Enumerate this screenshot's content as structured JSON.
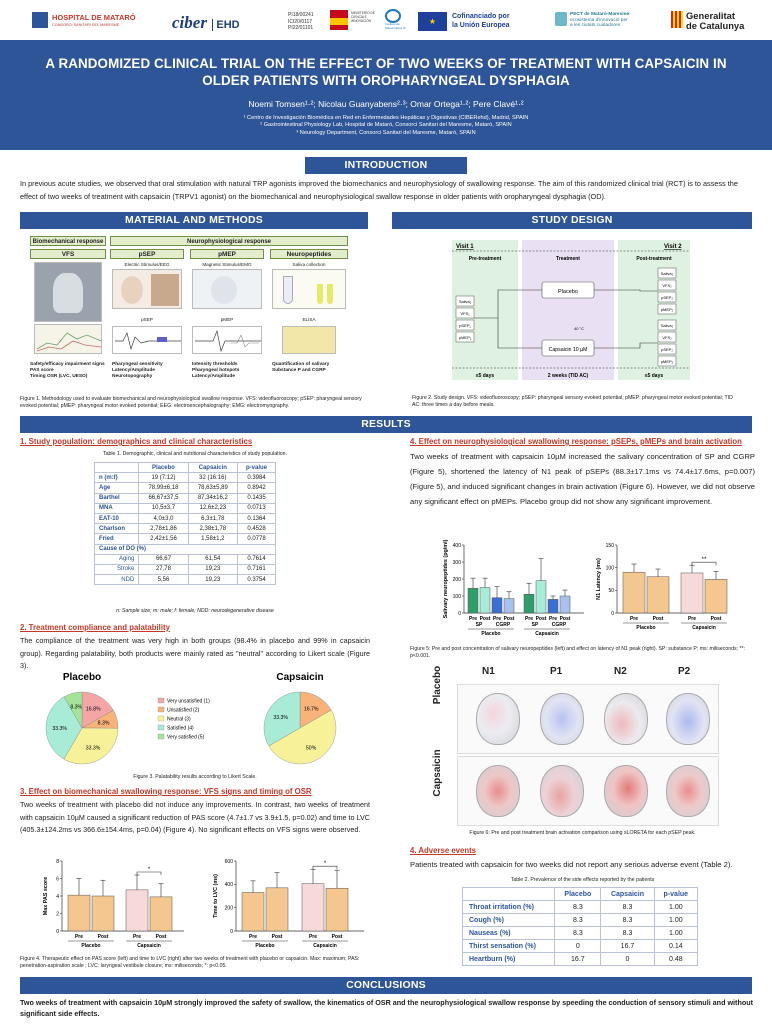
{
  "logos": {
    "hospital": "HOSPITAL DE MATARÓ",
    "hospital_sub": "CONSORCI SANITARI DEL MARESME",
    "ciber": "ciber",
    "ciber_ehd": "EHD",
    "grants": [
      "PI18/00241",
      "ICI20/0117",
      "PI22/01101"
    ],
    "ministerio": "MINISTERIO DE CIENCIA E INNOVACIÓN",
    "isciii": "Instituto de Salud Carlos III",
    "eu_1": "Cofinanciado por",
    "eu_2": "la Unión Europea",
    "pect_1": "PECT de Mataró-Maresme:",
    "pect_2": "ecosistema d'innovació per",
    "pect_3": "a les ciutats cuidadores",
    "gencat_1": "Generalitat",
    "gencat_2": "de Catalunya"
  },
  "title": "A RANDOMIZED CLINICAL TRIAL ON THE EFFECT OF TWO WEEKS OF TREATMENT WITH CAPSAICIN IN OLDER PATIENTS WITH OROPHARYNGEAL DYSPHAGIA",
  "authors": "Noemi Tomsen¹·²; Nicolau Guanyabens²·³; Omar Ortega¹·²; Pere Clavé¹·²",
  "affiliations": [
    "¹ Centro de Investigación Biomédica en Red en Enfermedades Hepáticas y Digestivas (CIBERehd), Madrid, SPAIN",
    "² Gastrointestinal Physiology Lab, Hospital de Mataró, Consorci Sanitari del Maresme, Mataró, SPAIN",
    "³ Neurology Department, Consorci Sanitari del Maresme, Mataró, SPAIN"
  ],
  "intro": {
    "header": "INTRODUCTION",
    "text": "In previous acute studies, we observed that oral stimulation with natural TRP agonists improved the biomechanics and neurophysiology of swallowing response. The aim of this randomized clinical trial (RCT) is to assess the effect of two weeks of treatment with capsaicin (TRPV1 agonist) on the biomechanical and neurophysiological swallow response in older patients with oropharyngeal dysphagia (OD)."
  },
  "methods": {
    "header": "MATERIAL AND METHODS",
    "biomech": "Biomechanical response",
    "neuro": "Neurophysiological response",
    "cols": [
      "VFS",
      "pSEP",
      "pMEP",
      "Neuropeptides"
    ],
    "subs": [
      "Electric Stimulus/EEG",
      "Magnetic Stimulus/EMG",
      "Saliva collection"
    ],
    "img_labels": [
      "pSEP",
      "pMEP",
      "ELISA"
    ],
    "bullets_vfs": [
      "Safety/efficacy impairment signs",
      "PAS score",
      "Timing OSR (LVC, UESO)"
    ],
    "bullets_psep": [
      "Pharyngeal sensitivity",
      "Latency/Amplitude",
      "Neurotopography"
    ],
    "bullets_pmep": [
      "Intensity thresholds",
      "Pharyngeal hotspots",
      "Latency/Amplitude"
    ],
    "bullets_neuro": [
      "Quantification of salivary Substance P and CGRP"
    ],
    "caption": "Figure 1. Methodology used to evaluate biomechanical and neurophysiological swallow response. VFS: videofluoroscopy; pSEP: pharyngeal sensory evoked potential; pMEP: pharyngeal motor evoked potential; EEG: electroencephalography; EMG: electromyography."
  },
  "design": {
    "header": "STUDY DESIGN",
    "visit1": "Visit 1",
    "visit2": "Visit 2",
    "pre": "Pre-treatment",
    "treat": "Treatment",
    "post": "Post-treatment",
    "left_boxes": [
      "Saliva₁",
      "VFS₁",
      "pSEP₁",
      "pMEP₁"
    ],
    "right_boxes_top": [
      "Saliva₂",
      "VFS₂",
      "pSEP₂",
      "pMEP₂"
    ],
    "right_boxes_bot": [
      "Saliva₂",
      "VFS₂",
      "pSEP₂",
      "pMEP₂"
    ],
    "placebo": "Placebo",
    "capsaicin": "Capsaicin 10 µM",
    "temp": "40 °C",
    "d1": "≤5 days",
    "d2": "2 weeks (TID AC)",
    "d3": "≤5 days",
    "caption": "Figure 2. Study design. VFS: videofluoroscopy; pSEP: pharyngeal sensory evoked potential; pMEP: pharyngeal motor evoked potential; TID AC: three times a day before meals."
  },
  "results": {
    "header": "RESULTS",
    "s1": "1. Study population: demographics and clinical characteristics",
    "table1_caption": "Table 1. Demographic, clinical and nutritional characteristics of study population.",
    "table1_head": [
      "",
      "Placebo",
      "Capsaicin",
      "p-value"
    ],
    "table1_rows": [
      [
        "n (m:f)",
        "19 (7:12)",
        "32 (16:16)",
        "0.3984"
      ],
      [
        "Age",
        "78,99±6,18",
        "78,63±5,89",
        "0.8942"
      ],
      [
        "Barthel",
        "66,67±37,5",
        "87,34±16,2",
        "0.1435"
      ],
      [
        "MNA",
        "10,5±3,7",
        "12,6±2,23",
        "0.0713"
      ],
      [
        "EAT-10",
        "4,0±3,0",
        "6,3±1,78",
        "0.1364"
      ],
      [
        "Charlson",
        "2,78±1,86",
        "2,38±1,78",
        "0.4528"
      ],
      [
        "Fried",
        "2,42±1,56",
        "1,58±1,2",
        "0.0778"
      ]
    ],
    "table1_cause": "Cause of DO (%)",
    "table1_cause_rows": [
      [
        "Aging",
        "66,67",
        "61,54",
        "0.7614"
      ],
      [
        "Stroke",
        "27,78",
        "19,23",
        "0.7161"
      ],
      [
        "NDD",
        "5,56",
        "19,23",
        "0.3754"
      ]
    ],
    "table1_note": "n: Sample size; m: male; f: female; NDD: neurodegenerative disease",
    "s2": "2. Treatment compliance and palatability",
    "s2_text": "The compliance of the treatment was very high in both groups (98.4% in placebo and 99% in capsaicin group). Regarding palatability, both products were mainly rated as \"neutral\" according to Likert scale (Figure 3).",
    "pie_caption": "Figure 3. Palatability results according to Likert Scale.",
    "s3": "3. Effect on biomechanical swallowing response: VFS signs and timing of OSR",
    "s3_text": "Two weeks of treatment with placebo did not induce any improvements. In contrast, two weeks of treatment with capsaicin 10µM caused a significant reduction of PAS score (4.7±1.7 vs 3.9±1.5, p=0.02) and time to LVC (405.3±124.2ms vs 366.6±154.4ms, p=0.04) (Figure 4). No significant effects on VFS signs were observed.",
    "fig4_caption": "Figure 4. Therapeutic effect on PAS score (left) and time to LVC (right) after two weeks of treatment with placebo or capsaicin. Max: maximum; PAS: penetration-aspiration scale ; LVC: laryngeal vestibule closure; ms: miliseconds; *: p<0.05.",
    "s4": "4. Effect on neurophysiological swallowing response: pSEPs, pMEPs and brain activation",
    "s4_text": "Two weeks of treatment with capsaicin 10µM increased the salivary concentration of SP and CGRP (Figure 5), shortened the latency of N1 peak of pSEPs (88.3±17.1ms vs 74.4±17.6ms, p=0.007) (Figure 5), and induced significant changes in brain activation (Figure 6). However, we did not observe any significant effect on pMEPs. Placebo group did not show any significant improvement.",
    "fig5_caption": "Figure 5: Pre and post concentration of salivary neuropeptides (left) and effect on latency of N1 peak (right). SP: substance P; ms: miliseconds; **: p<0.001.",
    "brain_cols": [
      "N1",
      "P1",
      "N2",
      "P2"
    ],
    "brain_rows": [
      "Placebo",
      "Capsaicin"
    ],
    "fig6_caption": "Figure 6: Pre and post treatment brain activation comparison using sLORETA for each pSEP peak.",
    "s5": "4. Adverse events",
    "s5_text": "Patients treated with capsaicin for two weeks did not report any serious adverse event (Table 2).",
    "table2_caption": "Table 2. Prevalence of the side effects reported by the patients",
    "table2_head": [
      "",
      "Placebo",
      "Capsaicin",
      "p-value"
    ],
    "table2_rows": [
      [
        "Throat irritation (%)",
        "8.3",
        "8.3",
        "1.00"
      ],
      [
        "Cough (%)",
        "8.3",
        "8.3",
        "1.00"
      ],
      [
        "Nauseas (%)",
        "8.3",
        "8.3",
        "1.00"
      ],
      [
        "Thirst sensation (%)",
        "0",
        "16.7",
        "0.14"
      ],
      [
        "Heartburn (%)",
        "16.7",
        "0",
        "0.48"
      ]
    ]
  },
  "conclusions": {
    "header": "CONCLUSIONS",
    "text": "Two weeks of treatment with capsaicin 10µM strongly improved the safety of swallow, the kinematics of OSR and the neurophysiological swallow response by speeding the conduction of sensory stimuli and without significant side effects."
  },
  "chart_data": [
    {
      "type": "pie",
      "title": "Placebo",
      "slices": [
        {
          "label": "Very unsatisfied (1)",
          "value": 16.8,
          "color": "#f4a6a6"
        },
        {
          "label": "Unsatisfied (2)",
          "value": 8.3,
          "color": "#f7b37a"
        },
        {
          "label": "Neutral (3)",
          "value": 33.3,
          "color": "#f7f29a"
        },
        {
          "label": "Satisfied (4)",
          "value": 33.3,
          "color": "#a8ecd7"
        },
        {
          "label": "Very satisfied (5)",
          "value": 8.3,
          "color": "#a6e39a"
        }
      ],
      "slice_labels": [
        "16.8%",
        "8.3%",
        "33.3%",
        "33.3%",
        "8.3%"
      ]
    },
    {
      "type": "pie",
      "title": "Capsaicin",
      "slices": [
        {
          "label": "Unsatisfied (2)",
          "value": 16.7,
          "color": "#f7b37a"
        },
        {
          "label": "Neutral (3)",
          "value": 50,
          "color": "#f7f29a"
        },
        {
          "label": "Satisfied (4)",
          "value": 33.3,
          "color": "#a8ecd7"
        }
      ],
      "slice_labels": [
        "16.7%",
        "50%",
        "33.3%"
      ]
    },
    {
      "type": "bar",
      "ylabel": "Max PAS score",
      "ylim": [
        0,
        8
      ],
      "yticks": [
        0,
        2,
        4,
        6,
        8
      ],
      "bars": [
        {
          "label": "Pre",
          "group": "Placebo",
          "value": 4.1,
          "err": 1.9,
          "color": "#f3c78f"
        },
        {
          "label": "Post",
          "group": "Placebo",
          "value": 4.0,
          "err": 1.8,
          "color": "#f3c78f"
        },
        {
          "label": "Pre",
          "group": "Capsaicin",
          "value": 4.7,
          "err": 1.7,
          "color": "#f8d9d9"
        },
        {
          "label": "Post",
          "group": "Capsaicin",
          "value": 3.9,
          "err": 1.5,
          "color": "#f3c78f"
        }
      ],
      "groups": [
        "Placebo",
        "Capsaicin"
      ],
      "sig": "*"
    },
    {
      "type": "bar",
      "ylabel": "Time to LVC (ms)",
      "ylim": [
        0,
        600
      ],
      "yticks": [
        0,
        200,
        400,
        600
      ],
      "bars": [
        {
          "label": "Pre",
          "group": "Placebo",
          "value": 330,
          "err": 100,
          "color": "#f3c78f"
        },
        {
          "label": "Post",
          "group": "Placebo",
          "value": 370,
          "err": 130,
          "color": "#f3c78f"
        },
        {
          "label": "Pre",
          "group": "Capsaicin",
          "value": 405.3,
          "err": 124.2,
          "color": "#f8d9d9"
        },
        {
          "label": "Post",
          "group": "Capsaicin",
          "value": 366.6,
          "err": 154.4,
          "color": "#f3c78f"
        }
      ],
      "groups": [
        "Placebo",
        "Capsaicin"
      ],
      "sig": "*"
    },
    {
      "type": "bar",
      "ylabel": "Salivary neuropeptides (pg/ml)",
      "ylim": [
        0,
        400
      ],
      "yticks": [
        0,
        100,
        200,
        300,
        400
      ],
      "bars": [
        {
          "label": "Pre",
          "sub": "SP",
          "group": "Placebo",
          "value": 145,
          "err": 60,
          "color": "#2e9e6b"
        },
        {
          "label": "Post",
          "sub": "SP",
          "group": "Placebo",
          "value": 150,
          "err": 55,
          "color": "#a8ecd7"
        },
        {
          "label": "Pre",
          "sub": "CGRP",
          "group": "Placebo",
          "value": 90,
          "err": 65,
          "color": "#3b6fd1"
        },
        {
          "label": "Post",
          "sub": "CGRP",
          "group": "Placebo",
          "value": 85,
          "err": 40,
          "color": "#a9c0ef"
        },
        {
          "label": "Pre",
          "sub": "SP",
          "group": "Capsaicin",
          "value": 110,
          "err": 65,
          "color": "#2e9e6b"
        },
        {
          "label": "Post",
          "sub": "SP",
          "group": "Capsaicin",
          "value": 190,
          "err": 130,
          "color": "#a8ecd7"
        },
        {
          "label": "Pre",
          "sub": "CGRP",
          "group": "Capsaicin",
          "value": 80,
          "err": 20,
          "color": "#3b6fd1"
        },
        {
          "label": "Post",
          "sub": "CGRP",
          "group": "Capsaicin",
          "value": 100,
          "err": 35,
          "color": "#a9c0ef"
        }
      ],
      "groups": [
        "Placebo",
        "Capsaicin"
      ]
    },
    {
      "type": "bar",
      "ylabel": "N1 Latency (ms)",
      "ylim": [
        0,
        150
      ],
      "yticks": [
        0,
        50,
        100,
        150
      ],
      "bars": [
        {
          "label": "Pre",
          "group": "Placebo",
          "value": 90,
          "err": 18,
          "color": "#f3c78f"
        },
        {
          "label": "Post",
          "group": "Placebo",
          "value": 80,
          "err": 17,
          "color": "#f3c78f"
        },
        {
          "label": "Pre",
          "group": "Capsaicin",
          "value": 88.3,
          "err": 17.1,
          "color": "#f8d9d9"
        },
        {
          "label": "Post",
          "group": "Capsaicin",
          "value": 74.4,
          "err": 17.6,
          "color": "#f3c78f"
        }
      ],
      "groups": [
        "Placebo",
        "Capsaicin"
      ],
      "sig": "**"
    }
  ]
}
